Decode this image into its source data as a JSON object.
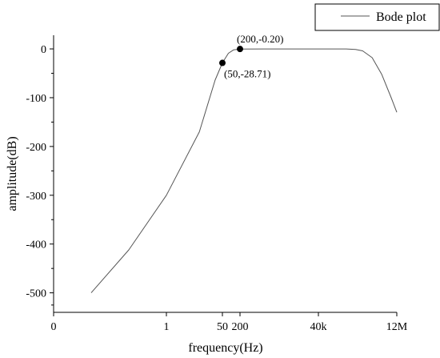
{
  "chart_data": {
    "type": "line",
    "title": "",
    "xlabel": "frequency(Hz)",
    "ylabel": "amplitude(dB)",
    "x_scale": "log",
    "grid": false,
    "legend_placement": "top-right",
    "x_tick_labels": [
      "0",
      "1",
      "50",
      "200",
      "40k",
      "12M"
    ],
    "x_tick_values": [
      0.001,
      1,
      50,
      200,
      40000,
      12000000
    ],
    "y_ticks": [
      0,
      -100,
      -200,
      -300,
      -400,
      -500
    ],
    "xlim": [
      0.001,
      12000000
    ],
    "ylim": [
      -540,
      28
    ],
    "series": [
      {
        "name": "Bode plot",
        "color": "#555555",
        "x": [
          0.01,
          0.1,
          1,
          10,
          30,
          50,
          80,
          120,
          200,
          1000,
          10000,
          100000,
          300000,
          600000,
          1000000,
          2000000,
          4000000,
          8000000,
          12000000
        ],
        "y": [
          -500,
          -412,
          -300,
          -170,
          -64,
          -28.71,
          -9,
          -2,
          -0.2,
          0,
          0,
          0,
          0,
          -1,
          -4,
          -18,
          -52,
          -100,
          -130
        ]
      }
    ],
    "annotations": [
      {
        "x": 50,
        "y": -28.71,
        "label": "(50,-28.71)"
      },
      {
        "x": 200,
        "y": -0.2,
        "label": "(200,-0.20)"
      }
    ]
  }
}
